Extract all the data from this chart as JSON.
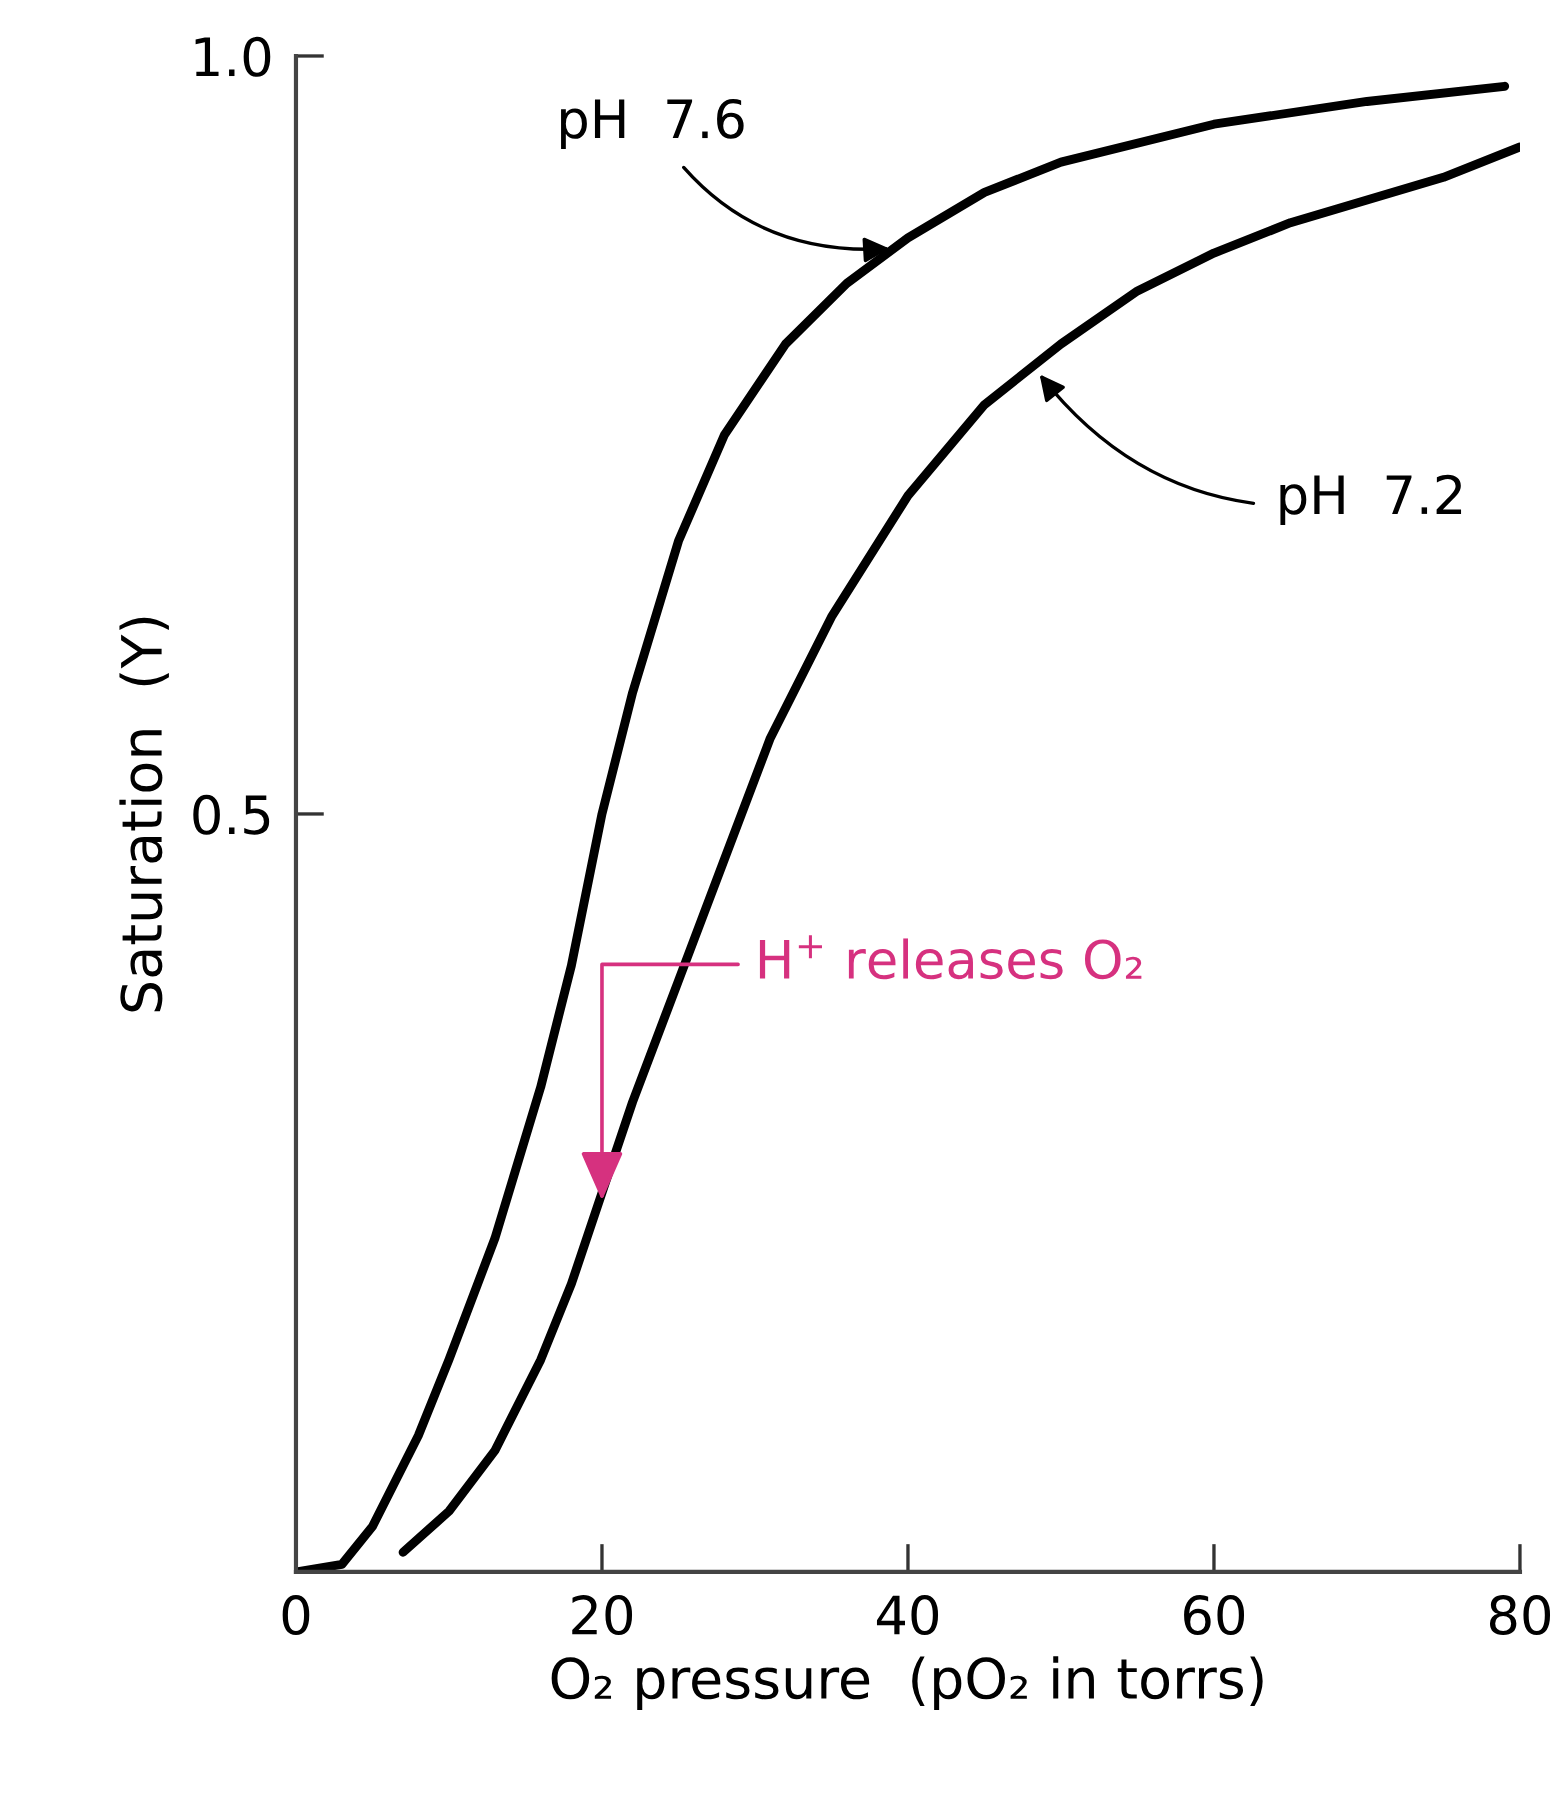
{
  "chart_data": {
    "type": "line",
    "xlabel": "O₂ pressure  (pO₂ in torrs)",
    "ylabel": "Saturation  (Y)",
    "xlim": [
      0,
      80
    ],
    "xticks": [
      0,
      20,
      40,
      60,
      80
    ],
    "ylim": [
      0,
      1.0
    ],
    "yticks": [
      {
        "value": 0.5,
        "label": "0.5"
      },
      {
        "value": 1.0,
        "label": "1.0"
      }
    ],
    "grid": false,
    "legend": false,
    "marker": "none",
    "line_style": "solid",
    "series": [
      {
        "color": "#000000",
        "x": [
          0,
          3,
          5,
          8,
          10,
          13,
          16,
          18,
          20,
          22,
          25,
          28,
          32,
          36,
          40,
          45,
          50,
          60,
          70,
          79
        ],
        "values": [
          0,
          0.005,
          0.03,
          0.09,
          0.14,
          0.22,
          0.32,
          0.4,
          0.5,
          0.58,
          0.68,
          0.75,
          0.81,
          0.85,
          0.88,
          0.91,
          0.93,
          0.955,
          0.97,
          0.98
        ]
      },
      {
        "color": "#000000",
        "x": [
          7,
          10,
          13,
          16,
          18,
          20,
          22,
          25,
          28,
          31,
          35,
          40,
          45,
          50,
          55,
          60,
          65,
          70,
          75,
          80
        ],
        "values": [
          0.013,
          0.04,
          0.08,
          0.14,
          0.19,
          0.25,
          0.31,
          0.39,
          0.47,
          0.55,
          0.63,
          0.71,
          0.77,
          0.81,
          0.845,
          0.87,
          0.89,
          0.905,
          0.92,
          0.94
        ]
      }
    ],
    "annotations": [
      {
        "text": "pH  7.6",
        "x": 38.8,
        "y": 0.873
      },
      {
        "text": "pH  7.2",
        "x": 48.6,
        "y": 0.79
      },
      {
        "text": "H$^{+}$ releases O₂",
        "x": 20,
        "y": 0.245
      }
    ]
  }
}
